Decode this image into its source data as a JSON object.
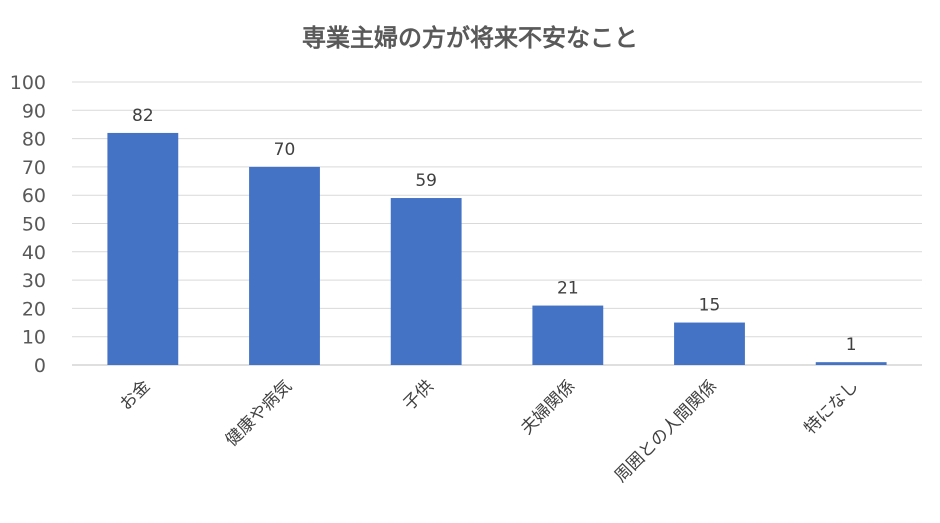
{
  "chart_data": {
    "type": "bar",
    "title": "専業主婦の方が将来不安なこと",
    "xlabel": "",
    "ylabel": "",
    "categories": [
      "お金",
      "健康や病気",
      "子供",
      "夫婦関係",
      "周囲との人間関係",
      "特になし"
    ],
    "values": [
      82,
      70,
      59,
      21,
      15,
      1
    ],
    "ylim": [
      0,
      100
    ],
    "yticks": [
      0,
      10,
      20,
      30,
      40,
      50,
      60,
      70,
      80,
      90,
      100
    ],
    "grid": true,
    "legend": "none",
    "bar_color": "#4472C4",
    "grid_color": "#D9D9D9"
  }
}
